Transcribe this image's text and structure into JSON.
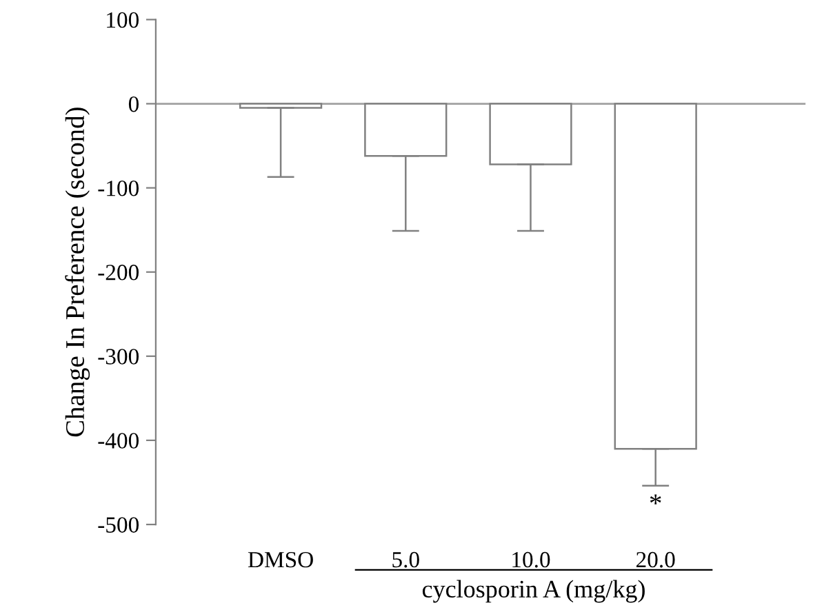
{
  "chart_data": {
    "type": "bar",
    "ylabel": "Change In Preference (second)",
    "xlabel": "cyclosporin A (mg/kg)",
    "categories": [
      "DMSO",
      "5.0",
      "10.0",
      "20.0"
    ],
    "values": [
      -5,
      -62,
      -72,
      -410
    ],
    "errors": [
      [
        -87,
        -5
      ],
      [
        -151,
        -62
      ],
      [
        -151,
        -72
      ],
      [
        -454,
        -410
      ]
    ],
    "color": "#ffffff",
    "ylim": [
      -500,
      100
    ],
    "yticks": [
      -500,
      -400,
      -300,
      -200,
      -100,
      0,
      100
    ],
    "ref_lines": [
      {
        "axis": "y",
        "value": 0,
        "color": "#a0a0a0"
      }
    ],
    "annotations": [
      {
        "text": "*",
        "x": "20.0",
        "y": -454
      }
    ],
    "grid": false,
    "legend": false
  }
}
